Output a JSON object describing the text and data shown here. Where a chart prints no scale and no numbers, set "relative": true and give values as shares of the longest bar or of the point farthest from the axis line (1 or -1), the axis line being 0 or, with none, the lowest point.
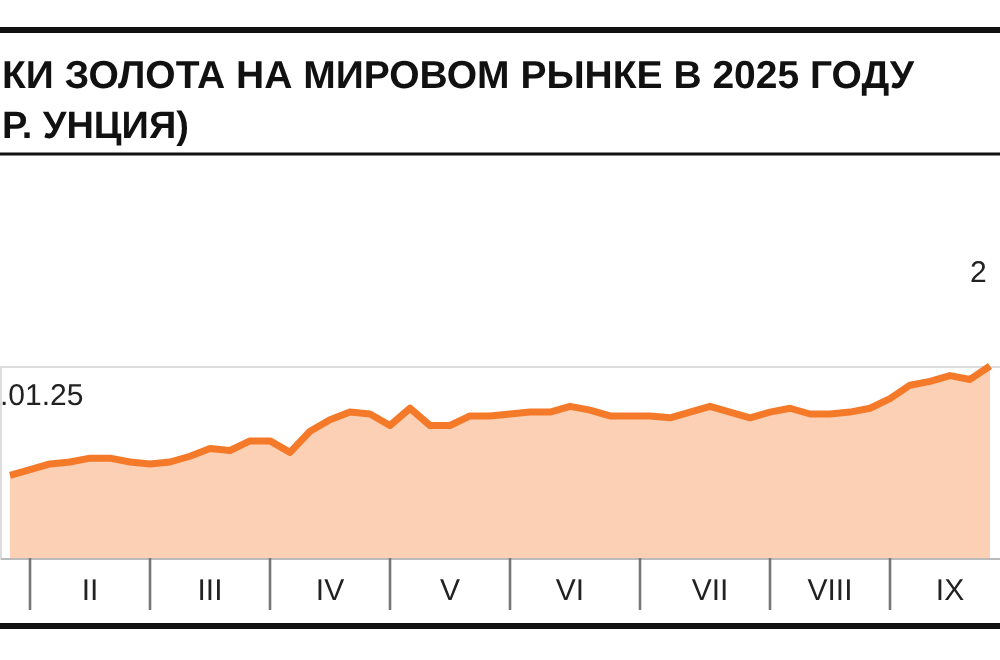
{
  "chart_data": {
    "type": "area",
    "title": "КИ ЗОЛОТА НА МИРОВОМ РЫНКЕ В 2025 ГОДУ",
    "subtitle": "Р. УНЦИЯ)",
    "relative": true,
    "categories": [
      null,
      null,
      null,
      null,
      "II",
      null,
      null,
      null,
      null,
      null,
      "III",
      null,
      null,
      null,
      null,
      null,
      "IV",
      null,
      null,
      null,
      null,
      null,
      "V",
      null,
      null,
      null,
      null,
      null,
      "VI",
      null,
      null,
      null,
      null,
      null,
      null,
      "VII",
      null,
      null,
      null,
      null,
      null,
      "VIII",
      null,
      null,
      null,
      null,
      null,
      "IX",
      null,
      null
    ],
    "series": [
      {
        "color": "#f47a2a",
        "values": [
          0.43,
          0.46,
          0.49,
          0.5,
          0.52,
          0.52,
          0.5,
          0.49,
          0.5,
          0.53,
          0.57,
          0.56,
          0.61,
          0.61,
          0.55,
          0.66,
          0.72,
          0.76,
          0.75,
          0.69,
          0.78,
          0.69,
          0.69,
          0.74,
          0.74,
          0.75,
          0.76,
          0.76,
          0.79,
          0.77,
          0.74,
          0.74,
          0.74,
          0.73,
          0.76,
          0.79,
          0.76,
          0.73,
          0.76,
          0.78,
          0.75,
          0.75,
          0.76,
          0.78,
          0.83,
          0.9,
          0.92,
          0.95,
          0.93,
          1.0
        ]
      }
    ],
    "annotations": [
      ".01.25",
      "2"
    ],
    "grid": false,
    "line_style": "solid",
    "marker": "none"
  }
}
